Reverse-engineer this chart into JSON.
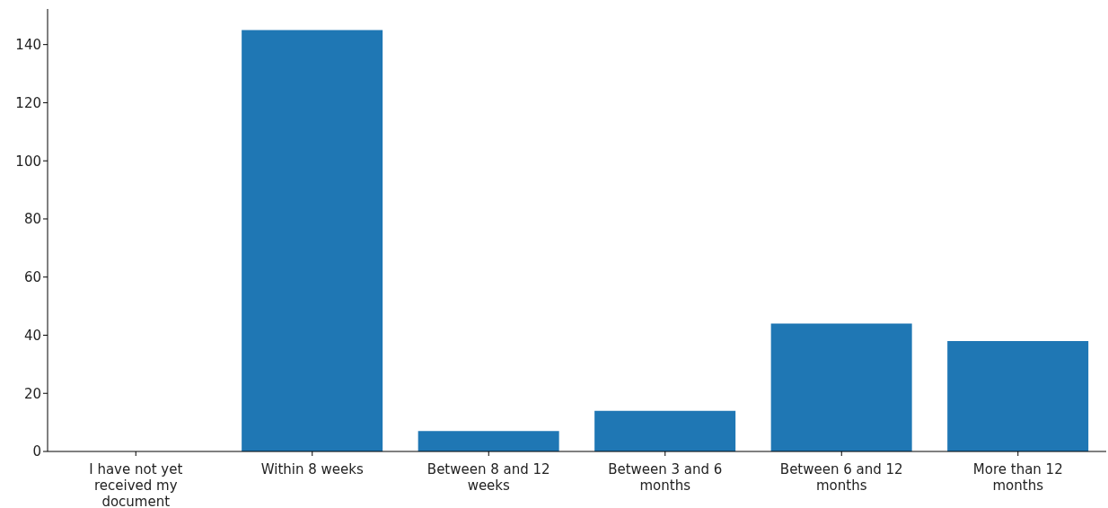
{
  "chart_data": {
    "type": "bar",
    "categories": [
      "I have not yet received my document",
      "Within 8 weeks",
      "Between 8 and 12 weeks",
      "Between 3 and 6 months",
      "Between 6 and 12 months",
      "More than 12 months"
    ],
    "values": [
      0,
      145,
      7,
      14,
      44,
      38
    ],
    "color": "#1f77b4",
    "ylim": [
      0,
      152.25
    ],
    "yticks": [
      0,
      20,
      40,
      60,
      80,
      100,
      120,
      140
    ],
    "grid": false
  }
}
